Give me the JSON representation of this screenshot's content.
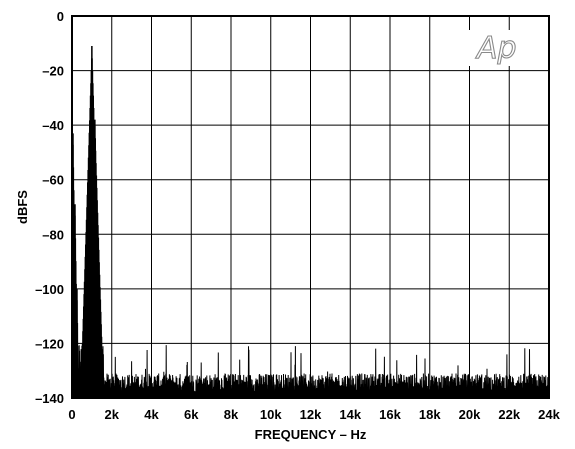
{
  "chart_data": {
    "type": "line",
    "title": "",
    "xlabel": "FREQUENCY – Hz",
    "ylabel": "dBFS",
    "xlim": [
      0,
      24000
    ],
    "ylim": [
      -140,
      0
    ],
    "x_ticks": [
      0,
      2000,
      4000,
      6000,
      8000,
      10000,
      12000,
      14000,
      16000,
      18000,
      20000,
      22000,
      24000
    ],
    "x_tick_labels": [
      "0",
      "2k",
      "4k",
      "6k",
      "8k",
      "10k",
      "12k",
      "14k",
      "16k",
      "18k",
      "20k",
      "22k",
      "24k"
    ],
    "y_ticks": [
      0,
      -20,
      -40,
      -60,
      -80,
      -100,
      -120,
      -140
    ],
    "y_tick_labels": [
      "0",
      "–20",
      "–40",
      "–60",
      "–80",
      "–100",
      "–120",
      "–140"
    ],
    "grid": true,
    "watermark": "Ap",
    "series": [
      {
        "peaks": [
          {
            "x": 50,
            "y": -43
          },
          {
            "x": 150,
            "y": -69
          },
          {
            "x": 250,
            "y": -100
          },
          {
            "x": 1000,
            "y": -11
          },
          {
            "x": 1150,
            "y": -38
          }
        ],
        "noise_floor": [
          -140,
          -120
        ],
        "noise_typical": [
          -138,
          -131
        ],
        "color": "#000000"
      }
    ]
  }
}
